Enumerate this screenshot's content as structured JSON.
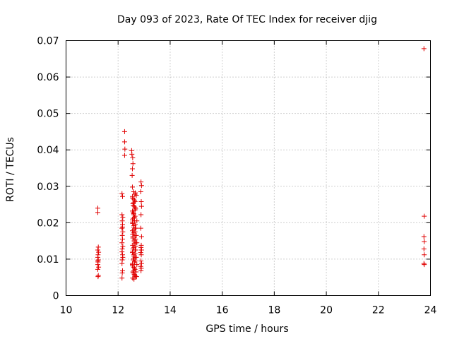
{
  "chart_data": {
    "type": "scatter",
    "title": "Day 093 of 2023, Rate Of TEC Index for receiver djig",
    "xlabel": "GPS time / hours",
    "ylabel": "ROTI / TECUs",
    "xlim": [
      10,
      24
    ],
    "ylim": [
      0,
      0.07
    ],
    "xticks": [
      "10",
      "12",
      "14",
      "16",
      "18",
      "20",
      "22",
      "24"
    ],
    "yticks": [
      "0",
      "0.01",
      "0.02",
      "0.03",
      "0.04",
      "0.05",
      "0.06",
      "0.07"
    ],
    "grid": true,
    "marker": "+",
    "color": "#e00000",
    "series": [
      {
        "x": [
          11.22,
          11.22,
          11.24,
          11.22,
          11.25,
          11.23,
          11.22,
          11.24,
          11.23,
          11.22,
          11.25,
          11.22,
          11.24,
          11.23,
          11.22,
          12.15,
          12.17,
          12.15,
          12.17,
          12.15,
          12.18,
          12.16,
          12.17,
          12.15,
          12.18,
          12.16,
          12.15,
          12.17,
          12.18,
          12.16,
          12.15,
          12.17,
          12.16,
          12.15,
          12.18,
          12.16,
          12.17,
          12.25,
          12.25,
          12.26,
          12.25,
          12.52,
          12.53,
          12.56,
          12.57,
          12.55,
          12.54,
          12.55,
          12.6,
          12.65,
          12.55,
          12.6,
          12.65,
          12.57,
          12.62,
          12.67,
          12.55,
          12.6,
          12.65,
          12.58,
          12.63,
          12.56,
          12.61,
          12.66,
          12.55,
          12.6,
          12.65,
          12.57,
          12.62,
          12.67,
          12.56,
          12.61,
          12.66,
          12.55,
          12.6,
          12.65,
          12.58,
          12.63,
          12.55,
          12.6,
          12.65,
          12.57,
          12.62,
          12.67,
          12.56,
          12.61,
          12.66,
          12.55,
          12.6,
          12.65,
          12.58,
          12.63,
          12.55,
          12.6,
          12.65,
          12.57,
          12.62,
          12.67,
          12.56,
          12.61,
          12.66,
          12.55,
          12.6,
          12.65,
          12.58,
          12.63,
          12.55,
          12.6,
          12.65,
          12.57,
          12.62,
          12.67,
          12.56,
          12.61,
          12.66,
          12.55,
          12.6,
          12.65,
          12.58,
          12.63,
          12.7,
          12.72,
          12.68,
          12.7,
          12.72,
          12.68,
          12.7,
          12.72,
          12.69,
          12.71,
          12.88,
          12.9,
          12.87,
          12.89,
          12.9,
          12.88,
          12.87,
          12.9,
          12.89,
          12.88,
          12.9,
          12.87,
          12.89,
          12.88,
          12.9,
          12.87,
          12.89,
          12.88,
          23.75,
          23.76,
          23.75,
          23.76,
          23.75,
          23.76,
          23.75,
          23.76
        ],
        "y": [
          0.024,
          0.0228,
          0.0133,
          0.0125,
          0.0119,
          0.0112,
          0.0105,
          0.0098,
          0.0092,
          0.0085,
          0.0078,
          0.0072,
          0.0055,
          0.0052,
          0.0095,
          0.028,
          0.0272,
          0.0222,
          0.0195,
          0.0185,
          0.0175,
          0.0165,
          0.0155,
          0.0145,
          0.0135,
          0.0128,
          0.012,
          0.0112,
          0.0105,
          0.0098,
          0.0088,
          0.0068,
          0.0062,
          0.0048,
          0.0215,
          0.0205,
          0.0188,
          0.045,
          0.0422,
          0.0402,
          0.0385,
          0.0398,
          0.0388,
          0.0378,
          0.0362,
          0.0348,
          0.033,
          0.0298,
          0.0285,
          0.0278,
          0.0272,
          0.0265,
          0.0258,
          0.0252,
          0.0245,
          0.0238,
          0.0232,
          0.0225,
          0.0218,
          0.0212,
          0.0205,
          0.0198,
          0.0192,
          0.0185,
          0.0178,
          0.0172,
          0.0165,
          0.0158,
          0.0152,
          0.0145,
          0.0138,
          0.0132,
          0.0125,
          0.0118,
          0.0112,
          0.0105,
          0.0098,
          0.0092,
          0.0085,
          0.0078,
          0.0072,
          0.0065,
          0.0058,
          0.0052,
          0.0048,
          0.0045,
          0.0282,
          0.0268,
          0.0255,
          0.0242,
          0.0228,
          0.0215,
          0.0202,
          0.0188,
          0.0175,
          0.0162,
          0.0148,
          0.0135,
          0.0122,
          0.0108,
          0.0095,
          0.0082,
          0.0068,
          0.0055,
          0.0062,
          0.0075,
          0.0088,
          0.0102,
          0.0115,
          0.0128,
          0.0142,
          0.0155,
          0.0168,
          0.0182,
          0.0195,
          0.0208,
          0.0222,
          0.0235,
          0.0248,
          0.0262,
          0.0275,
          0.0205,
          0.0185,
          0.0165,
          0.0145,
          0.0125,
          0.0105,
          0.0085,
          0.0065,
          0.0052,
          0.0312,
          0.0302,
          0.0285,
          0.0258,
          0.0245,
          0.0222,
          0.0185,
          0.0162,
          0.0138,
          0.0132,
          0.0125,
          0.0118,
          0.0112,
          0.0095,
          0.0088,
          0.008,
          0.0075,
          0.0068,
          0.0678,
          0.0218,
          0.0162,
          0.0148,
          0.0128,
          0.0112,
          0.0088,
          0.0085
        ]
      }
    ]
  }
}
